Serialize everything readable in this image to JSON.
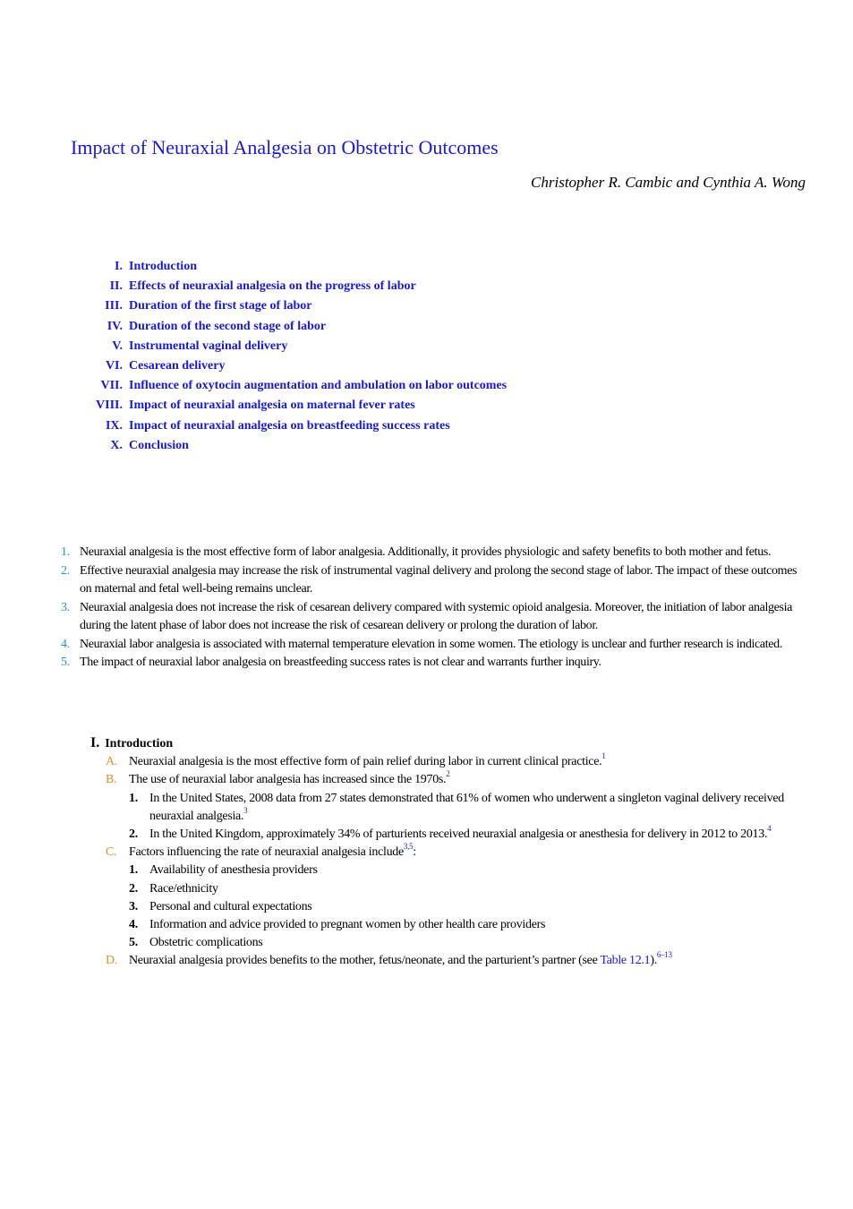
{
  "title": "Impact of Neuraxial Analgesia on Obstetric Outcomes",
  "authors": "Christopher R. Cambic and Cynthia A. Wong",
  "toc": [
    {
      "num": "I.",
      "label": "Introduction"
    },
    {
      "num": "II.",
      "label": "Effects of neuraxial analgesia on the progress of labor"
    },
    {
      "num": "III.",
      "label": "Duration of the first stage of labor"
    },
    {
      "num": "IV.",
      "label": "Duration of the second stage of labor"
    },
    {
      "num": "V.",
      "label": "Instrumental vaginal delivery"
    },
    {
      "num": "VI.",
      "label": "Cesarean delivery"
    },
    {
      "num": "VII.",
      "label": "Influence of oxytocin augmentation and ambulation on labor outcomes"
    },
    {
      "num": "VIII.",
      "label": "Impact of neuraxial analgesia on maternal fever rates"
    },
    {
      "num": "IX.",
      "label": "Impact of neuraxial analgesia on breastfeeding success rates"
    },
    {
      "num": "X.",
      "label": "Conclusion"
    }
  ],
  "key_points": [
    {
      "num": "1.",
      "text": "Neuraxial analgesia is the most effective form of labor analgesia. Additionally, it provides physiologic and safety benefits to both mother and fetus."
    },
    {
      "num": "2.",
      "text": "Effective neuraxial analgesia may increase the risk of instrumental vaginal delivery and prolong the second stage of labor. The impact of these outcomes on maternal and fetal well-being remains unclear."
    },
    {
      "num": "3.",
      "text": "Neuraxial analgesia does not increase the risk of cesarean delivery compared with systemic opioid analgesia. Moreover, the initiation of labor analgesia during the latent phase of labor does not increase the risk of cesarean delivery or prolong the duration of labor."
    },
    {
      "num": "4.",
      "text": "Neuraxial labor analgesia is associated with maternal temperature elevation in some women. The etiology is unclear and further research is indicated."
    },
    {
      "num": "5.",
      "text": "The impact of neuraxial labor analgesia on breastfeeding success rates is not clear and warrants further inquiry."
    }
  ],
  "section": {
    "roman": "I.",
    "heading": "Introduction",
    "A": {
      "letter": "A.",
      "text": "Neuraxial analgesia is the most effective form of pain relief during labor in current clinical practice.",
      "ref": "1"
    },
    "B": {
      "letter": "B.",
      "text": "The use of neuraxial labor analgesia has increased since the 1970s.",
      "ref": "2",
      "items": [
        {
          "n": "1.",
          "text": "In the United States, 2008 data from 27 states demonstrated that 61% of women who underwent a singleton vaginal delivery received neuraxial analgesia.",
          "ref": "3"
        },
        {
          "n": "2.",
          "text": "In the United Kingdom, approximately 34% of parturients received neuraxial analgesia or anesthesia for delivery in 2012 to 2013.",
          "ref": "4"
        }
      ]
    },
    "C": {
      "letter": "C.",
      "text": "Factors influencing the rate of neuraxial analgesia include",
      "ref": "3,5",
      "suffix": ":",
      "items": [
        {
          "n": "1.",
          "text": "Availability of anesthesia providers"
        },
        {
          "n": "2.",
          "text": "Race/ethnicity"
        },
        {
          "n": "3.",
          "text": "Personal and cultural expectations"
        },
        {
          "n": "4.",
          "text": "Information and advice provided to pregnant women by other health care providers"
        },
        {
          "n": "5.",
          "text": "Obstetric complications"
        }
      ]
    },
    "D": {
      "letter": "D.",
      "text": "Neuraxial analgesia provides benefits to the mother, fetus/neonate, and the parturient’s partner (see ",
      "link": "Table 12.1",
      "after": ").",
      "ref": "6–13"
    }
  },
  "colors": {
    "link_blue": "#1a1ad6",
    "key_number_blue": "#2a8fd0",
    "letter_orange": "#e0902a"
  }
}
